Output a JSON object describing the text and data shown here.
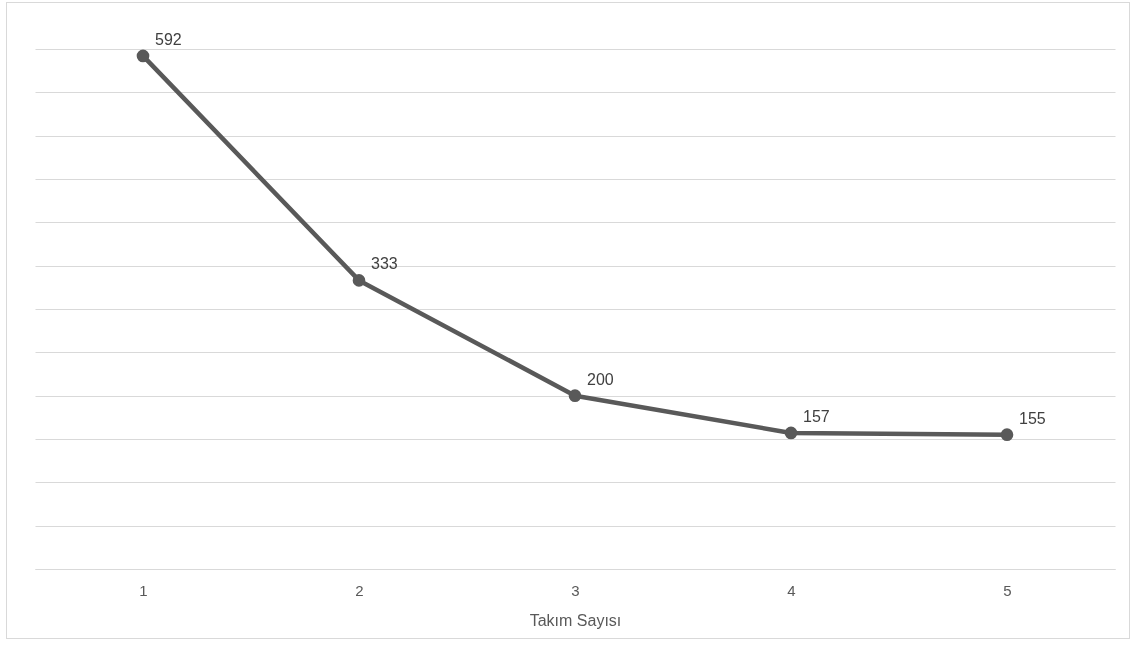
{
  "chart_data": {
    "type": "line",
    "xlabel": "Takım Sayısı",
    "categories": [
      "1",
      "2",
      "3",
      "4",
      "5"
    ],
    "series": [
      {
        "color": "#595959",
        "values": [
          592,
          333,
          200,
          157,
          155
        ]
      }
    ],
    "ylim": [
      0,
      600
    ],
    "yticks": [
      {
        "value": 0,
        "label": null
      },
      {
        "value": 50,
        "label": null
      },
      {
        "value": 100,
        "label": null
      },
      {
        "value": 150,
        "label": null
      },
      {
        "value": 200,
        "label": null
      },
      {
        "value": 250,
        "label": null
      },
      {
        "value": 300,
        "label": null
      },
      {
        "value": 350,
        "label": null
      },
      {
        "value": 400,
        "label": null
      },
      {
        "value": 450,
        "label": null
      },
      {
        "value": 500,
        "label": null
      },
      {
        "value": 550,
        "label": null
      },
      {
        "value": 600,
        "label": null
      }
    ],
    "tick_labels": "x",
    "grid": "y",
    "marker": "circle",
    "data_labels": true,
    "legend": false
  }
}
